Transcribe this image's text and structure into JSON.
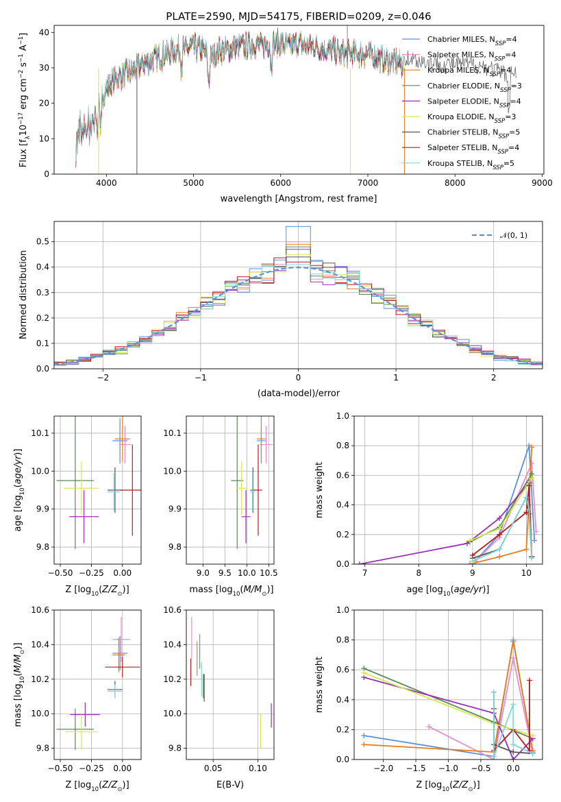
{
  "figure": {
    "title": "PLATE=2590, MJD=54175, FIBERID=0209, z=0.046"
  },
  "models": [
    {
      "name": "Chabrier MILES",
      "nssp": "4",
      "color": "#5b8fd9"
    },
    {
      "name": "Salpeter MILES",
      "nssp": "4",
      "color": "#e88dc9"
    },
    {
      "name": "Kroupa MILES",
      "nssp": "4",
      "color": "#e87d1e"
    },
    {
      "name": "Chabrier ELODIE",
      "nssp": "3",
      "color": "#5a8a5a"
    },
    {
      "name": "Salpeter ELODIE",
      "nssp": "4",
      "color": "#9a2fb5"
    },
    {
      "name": "Kroupa ELODIE",
      "nssp": "3",
      "color": "#d7e84d"
    },
    {
      "name": "Chabrier STELIB",
      "nssp": "5",
      "color": "#555555"
    },
    {
      "name": "Salpeter STELIB",
      "nssp": "4",
      "color": "#b8181c"
    },
    {
      "name": "Kroupa STELIB",
      "nssp": "5",
      "color": "#7fd6d6"
    }
  ],
  "chart_data": [
    {
      "id": "spectrum",
      "type": "line",
      "title": "PLATE=2590, MJD=54175, FIBERID=0209, z=0.046",
      "xlabel": "wavelength [Angstrom, rest frame]",
      "ylabel": "Flux [f_λ 10^-17 erg cm^-2 s^-1 A^-1]",
      "xlim": [
        3400,
        9020
      ],
      "ylim": [
        0,
        42
      ],
      "xticks": [
        4000,
        5000,
        6000,
        7000,
        8000,
        9000
      ],
      "yticks": [
        0,
        10,
        20,
        30,
        40
      ],
      "continuum": {
        "x": [
          3650,
          3700,
          3800,
          3900,
          4000,
          4100,
          4200,
          4300,
          4400,
          4500,
          4600,
          4700,
          4800,
          4900,
          5000,
          5100,
          5200,
          5300,
          5400,
          5500,
          5600,
          5700,
          5800,
          5900,
          6000,
          6100,
          6200,
          6300,
          6400,
          6500,
          6600,
          6700,
          6800,
          6900,
          7000,
          7100,
          7200,
          7300,
          7400
        ],
        "y": [
          13,
          16,
          16,
          20,
          24,
          27,
          28,
          29,
          31,
          32,
          33,
          34,
          35,
          35,
          36,
          35,
          33,
          35,
          35,
          36,
          36,
          37,
          36,
          37,
          37,
          36,
          37,
          36,
          36,
          35,
          35,
          34,
          34,
          34,
          34,
          33,
          32,
          32,
          31
        ]
      },
      "tail": {
        "x": [
          7420,
          7600,
          7800,
          8000,
          8200,
          8400,
          8500,
          8600,
          8700
        ],
        "y": [
          33,
          32,
          31,
          31,
          31,
          30,
          29,
          28,
          29
        ]
      },
      "dropouts": [
        3910,
        4350,
        6800,
        7420
      ],
      "spike": 6765,
      "legend_position": "upper-right"
    },
    {
      "id": "residuals",
      "type": "histogram",
      "xlabel": "(data-model)/error",
      "ylabel": "Normed distribution",
      "xlim": [
        -2.5,
        2.5
      ],
      "ylim": [
        0,
        0.58
      ],
      "xticks": [
        -2,
        -1,
        0,
        1,
        2
      ],
      "yticks": [
        0,
        0.1,
        0.2,
        0.3,
        0.4,
        0.5
      ],
      "bin_width": 0.125,
      "reference_name": "𝒩(0, 1)",
      "reference_color": "#5b8fd9",
      "center_bin_values": [
        0.56,
        0.5,
        0.49,
        0.48,
        0.47,
        0.45,
        0.44,
        0.42,
        0.41
      ],
      "grid": true,
      "legend_position": "upper-right"
    },
    {
      "id": "age_vs_Z",
      "type": "errorbar",
      "xlabel": "Z [log10(Z/Z☉)]",
      "ylabel": "age [log10(age/yr)]",
      "xlim": [
        -0.55,
        0.15
      ],
      "ylim": [
        9.755,
        10.145
      ],
      "xticks": [
        -0.5,
        -0.25,
        0.0
      ],
      "yticks": [
        9.8,
        9.9,
        10.0,
        10.1
      ],
      "points": [
        {
          "x": -0.02,
          "y": 10.08,
          "ex": 0.06,
          "ey": 0.06
        },
        {
          "x": 0.02,
          "y": 10.07,
          "ex": 0.05,
          "ey": 0.05
        },
        {
          "x": 0.0,
          "y": 10.085,
          "ex": 0.06,
          "ey": 0.06
        },
        {
          "x": -0.38,
          "y": 9.975,
          "ex": 0.15,
          "ey": 0.18
        },
        {
          "x": -0.31,
          "y": 9.88,
          "ex": 0.12,
          "ey": 0.07
        },
        {
          "x": -0.33,
          "y": 9.955,
          "ex": 0.14,
          "ey": 0.07
        },
        {
          "x": -0.06,
          "y": 9.95,
          "ex": 0.06,
          "ey": 0.06
        },
        {
          "x": 0.08,
          "y": 9.95,
          "ex": 0.1,
          "ey": 0.12
        },
        {
          "x": -0.07,
          "y": 9.945,
          "ex": 0.05,
          "ey": 0.05
        }
      ],
      "grid": true
    },
    {
      "id": "age_vs_mass",
      "type": "errorbar",
      "xlabel": "mass [log10(M/M☉)]",
      "ylabel": "",
      "xlim": [
        8.62,
        10.62
      ],
      "ylim": [
        9.755,
        10.145
      ],
      "xticks": [
        9.0,
        9.5,
        10.0,
        10.5
      ],
      "yticks": [
        9.8,
        9.9,
        10.0,
        10.1
      ],
      "points": [
        {
          "x": 10.33,
          "y": 10.08,
          "ex": 0.1,
          "ey": 0.06
        },
        {
          "x": 10.44,
          "y": 10.07,
          "ex": 0.15,
          "ey": 0.05
        },
        {
          "x": 10.33,
          "y": 10.085,
          "ex": 0.1,
          "ey": 0.06
        },
        {
          "x": 9.78,
          "y": 9.975,
          "ex": 0.14,
          "ey": 0.18
        },
        {
          "x": 9.98,
          "y": 9.88,
          "ex": 0.1,
          "ey": 0.07
        },
        {
          "x": 9.88,
          "y": 9.955,
          "ex": 0.12,
          "ey": 0.07
        },
        {
          "x": 10.14,
          "y": 9.95,
          "ex": 0.06,
          "ey": 0.06
        },
        {
          "x": 10.26,
          "y": 9.95,
          "ex": 0.09,
          "ey": 0.12
        },
        {
          "x": 10.13,
          "y": 9.945,
          "ex": 0.05,
          "ey": 0.05
        }
      ],
      "grid": true
    },
    {
      "id": "weight_vs_age",
      "type": "line",
      "xlabel": "age [log10(age/yr)]",
      "ylabel": "mass weight",
      "xlim": [
        6.8,
        10.3
      ],
      "ylim": [
        0,
        1.0
      ],
      "xticks": [
        7,
        8,
        9,
        10
      ],
      "yticks": [
        0.0,
        0.2,
        0.4,
        0.6,
        0.8,
        1.0
      ],
      "series": [
        {
          "name": "Chabrier MILES",
          "x": [
            9.05,
            9.5,
            10.05,
            10.15
          ],
          "y": [
            0.02,
            0.2,
            0.8,
            0.16
          ]
        },
        {
          "name": "Salpeter MILES",
          "x": [
            9.05,
            9.5,
            10.1,
            10.18
          ],
          "y": [
            0.02,
            0.18,
            0.68,
            0.22
          ]
        },
        {
          "name": "Kroupa MILES",
          "x": [
            8.95,
            9.5,
            10.0,
            10.1
          ],
          "y": [
            0.0,
            0.05,
            0.1,
            0.79
          ]
        },
        {
          "name": "Chabrier ELODIE",
          "x": [
            8.95,
            9.5,
            10.1
          ],
          "y": [
            0.15,
            0.25,
            0.61
          ]
        },
        {
          "name": "Salpeter ELODIE",
          "x": [
            6.9,
            8.9,
            9.5,
            10.05
          ],
          "y": [
            0.0,
            0.14,
            0.31,
            0.55
          ]
        },
        {
          "name": "Kroupa ELODIE",
          "x": [
            8.95,
            9.5,
            10.1
          ],
          "y": [
            0.16,
            0.24,
            0.58
          ]
        },
        {
          "name": "Chabrier STELIB",
          "x": [
            9.0,
            9.5,
            10.0,
            10.05,
            10.1
          ],
          "y": [
            0.04,
            0.1,
            0.45,
            0.34,
            0.05
          ]
        },
        {
          "name": "Salpeter STELIB",
          "x": [
            9.0,
            9.5,
            10.0,
            10.05,
            10.1
          ],
          "y": [
            0.06,
            0.2,
            0.35,
            0.53,
            0.05
          ]
        },
        {
          "name": "Kroupa STELIB",
          "x": [
            9.0,
            9.5,
            10.0,
            10.05,
            10.1
          ],
          "y": [
            0.02,
            0.1,
            0.45,
            0.37,
            0.04
          ]
        }
      ],
      "grid": true
    },
    {
      "id": "mass_vs_Z",
      "type": "errorbar",
      "xlabel": "Z [log10(Z/Z☉)]",
      "ylabel": "mass [log10(M/M☉)]",
      "xlim": [
        -0.55,
        0.15
      ],
      "ylim": [
        9.735,
        10.6
      ],
      "xticks": [
        -0.5,
        -0.25,
        0.0
      ],
      "yticks": [
        9.8,
        10.0,
        10.2,
        10.4,
        10.6
      ],
      "points": [
        {
          "x": -0.02,
          "y": 10.35,
          "ex": 0.06,
          "ey": 0.1
        },
        {
          "x": -0.01,
          "y": 10.43,
          "ex": 0.07,
          "ey": 0.13
        },
        {
          "x": -0.03,
          "y": 10.34,
          "ex": 0.05,
          "ey": 0.1
        },
        {
          "x": -0.38,
          "y": 9.91,
          "ex": 0.15,
          "ey": 0.12
        },
        {
          "x": -0.3,
          "y": 9.995,
          "ex": 0.12,
          "ey": 0.07
        },
        {
          "x": -0.33,
          "y": 9.895,
          "ex": 0.13,
          "ey": 0.1
        },
        {
          "x": -0.06,
          "y": 10.14,
          "ex": 0.06,
          "ey": 0.05
        },
        {
          "x": 0.0,
          "y": 10.27,
          "ex": 0.14,
          "ey": 0.06
        },
        {
          "x": -0.06,
          "y": 10.13,
          "ex": 0.06,
          "ey": 0.04
        }
      ],
      "grid": true
    },
    {
      "id": "mass_vs_ebv",
      "type": "errorbar",
      "xlabel": "E(B-V)",
      "ylabel": "",
      "xlim": [
        0.02,
        0.118
      ],
      "ylim": [
        9.735,
        10.6
      ],
      "xticks": [
        0.05,
        0.1
      ],
      "yticks": [
        9.8,
        10.0,
        10.2,
        10.4,
        10.6
      ],
      "points": [
        {
          "x": 0.035,
          "y": 10.36,
          "ex": 0.0,
          "ey": 0.1
        },
        {
          "x": 0.026,
          "y": 10.44,
          "ex": 0.0,
          "ey": 0.12
        },
        {
          "x": 0.032,
          "y": 10.32,
          "ex": 0.0,
          "ey": 0.1
        },
        {
          "x": 0.039,
          "y": 10.16,
          "ex": 0.0,
          "ey": 0.07
        },
        {
          "x": 0.115,
          "y": 9.99,
          "ex": 0.0,
          "ey": 0.07
        },
        {
          "x": 0.103,
          "y": 9.9,
          "ex": 0.0,
          "ey": 0.1
        },
        {
          "x": 0.04,
          "y": 10.15,
          "ex": 0.0,
          "ey": 0.08
        },
        {
          "x": 0.025,
          "y": 10.24,
          "ex": 0.0,
          "ey": 0.08
        },
        {
          "x": 0.037,
          "y": 10.2,
          "ex": 0.0,
          "ey": 0.1
        }
      ],
      "grid": true
    },
    {
      "id": "weight_vs_Z",
      "type": "line",
      "xlabel": "Z [log10(Z/Z☉)]",
      "ylabel": "mass weight",
      "xlim": [
        -2.45,
        0.45
      ],
      "ylim": [
        0,
        1.0
      ],
      "xticks": [
        -2.0,
        -1.5,
        -1.0,
        -0.5,
        0.0
      ],
      "yticks": [
        0.0,
        0.2,
        0.4,
        0.6,
        0.8,
        1.0
      ],
      "series": [
        {
          "name": "Chabrier MILES",
          "x": [
            -2.3,
            -0.3,
            0.0,
            0.3
          ],
          "y": [
            0.16,
            0.02,
            0.8,
            0.05
          ]
        },
        {
          "name": "Salpeter MILES",
          "x": [
            -1.3,
            -0.3,
            0.0,
            0.3
          ],
          "y": [
            0.22,
            0.0,
            0.68,
            0.04
          ]
        },
        {
          "name": "Kroupa MILES",
          "x": [
            -2.3,
            -0.3,
            0.0,
            0.3
          ],
          "y": [
            0.1,
            0.05,
            0.79,
            0.06
          ]
        },
        {
          "name": "Chabrier ELODIE",
          "x": [
            -2.3,
            -0.3,
            0.3
          ],
          "y": [
            0.61,
            0.25,
            0.14
          ]
        },
        {
          "name": "Salpeter ELODIE",
          "x": [
            -2.3,
            -0.3,
            0.0,
            0.3
          ],
          "y": [
            0.55,
            0.31,
            0.0,
            0.14
          ]
        },
        {
          "name": "Kroupa ELODIE",
          "x": [
            -2.3,
            -0.3,
            0.3
          ],
          "y": [
            0.58,
            0.24,
            0.16
          ]
        },
        {
          "name": "Chabrier STELIB",
          "x": [
            -0.3,
            -0.3,
            0.0,
            0.3
          ],
          "y": [
            0.45,
            0.1,
            0.05,
            0.04
          ]
        },
        {
          "name": "Salpeter STELIB",
          "x": [
            -0.3,
            -0.3,
            0.0,
            0.25,
            0.25
          ],
          "y": [
            0.34,
            0.06,
            0.2,
            0.06,
            0.53
          ]
        },
        {
          "name": "Kroupa STELIB",
          "x": [
            -0.3,
            -0.3,
            0.0,
            0.0,
            0.3
          ],
          "y": [
            0.45,
            0.02,
            0.37,
            0.1,
            0.04
          ]
        }
      ],
      "grid": true
    }
  ]
}
